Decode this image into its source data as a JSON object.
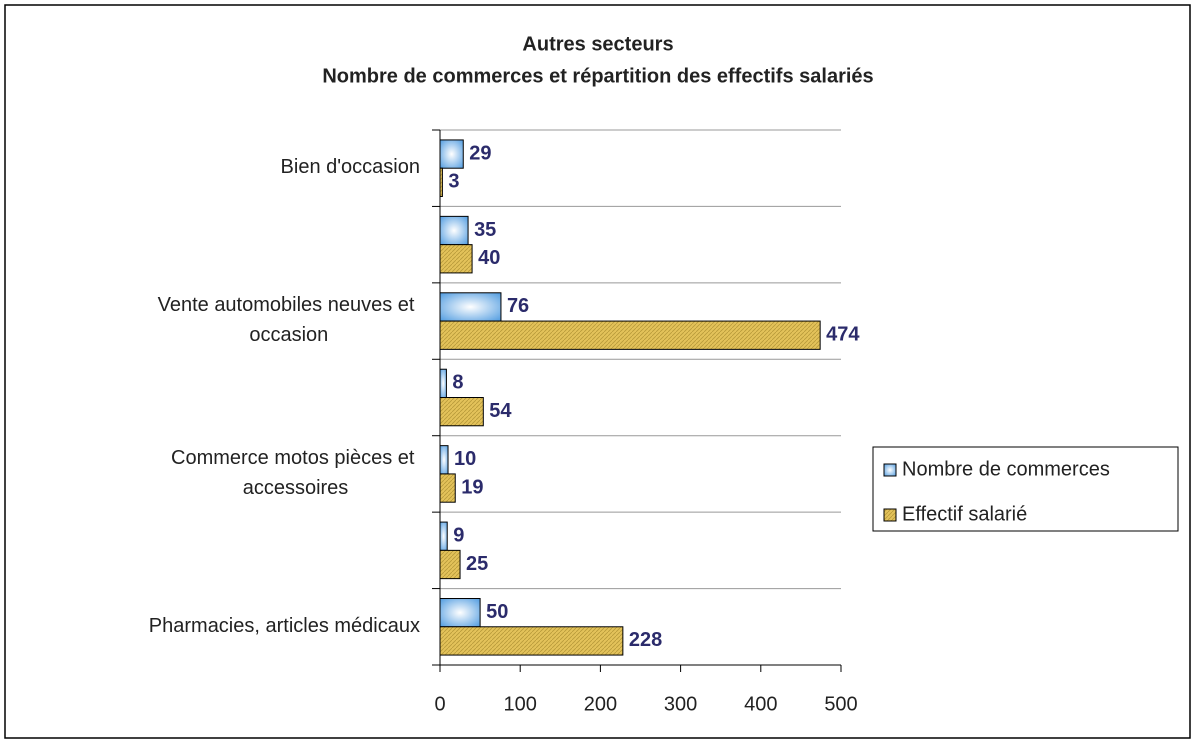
{
  "chart_data": {
    "type": "hbar",
    "title": "Autres secteurs",
    "subtitle": "Nombre de commerces et répartition des effectifs salariés",
    "categories": [
      "Bien d'occasion",
      null,
      "Vente automobiles neuves et occasion",
      null,
      "Commerce motos pièces et accessoires",
      null,
      "Pharmacies, articles médicaux"
    ],
    "series": [
      {
        "name": "Nombre de commerces",
        "color": "#4f9be0",
        "values": [
          29,
          35,
          76,
          8,
          10,
          9,
          50
        ]
      },
      {
        "name": "Effectif salarié",
        "color": "#e3c25a",
        "values": [
          3,
          40,
          474,
          54,
          19,
          25,
          228
        ]
      }
    ],
    "xlim": [
      0,
      500
    ],
    "xticks": [
      0,
      100,
      200,
      300,
      400,
      500
    ],
    "grid": true,
    "legend": "right"
  }
}
